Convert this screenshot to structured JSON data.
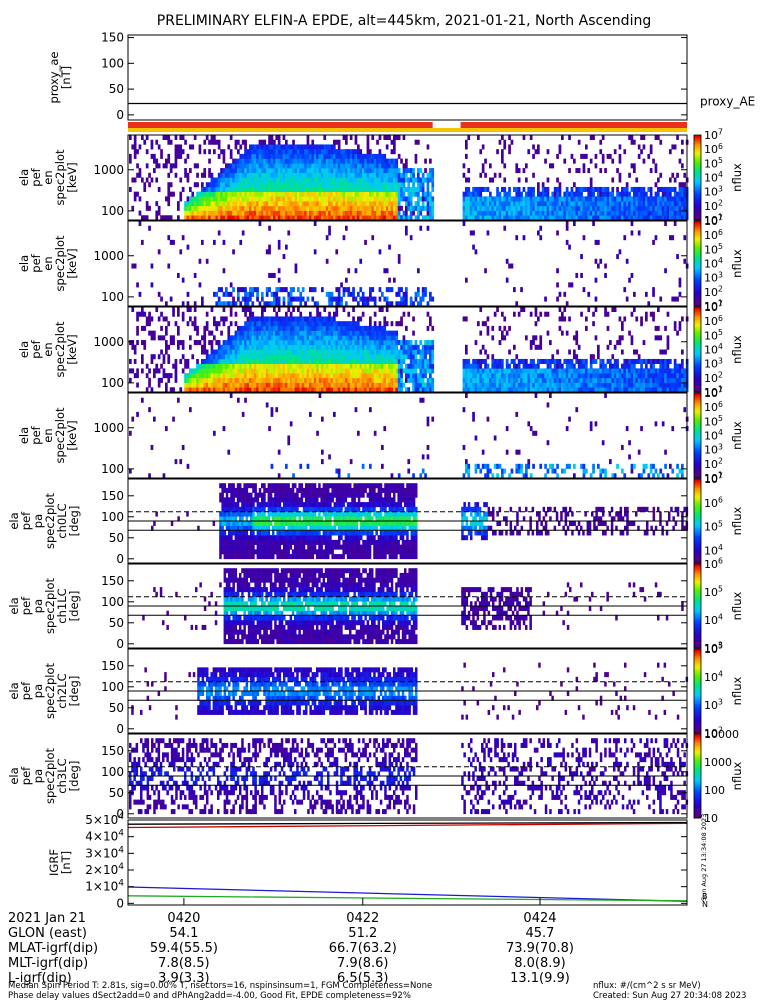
{
  "title": "PRELIMINARY ELFIN-A EPDE, alt=445km, 2021-01-21, North Ascending",
  "colors": {
    "ae_line": "#000000",
    "bar_red": "#e8321e",
    "bar_yellow": "#f5c400",
    "igrf_total": "#cc0000",
    "igrf_x": "#1a1ad6",
    "igrf_y": "#22aa22",
    "igrf_z": "#000000"
  },
  "chart_data": [
    {
      "type": "line",
      "name": "proxy_ae",
      "ylabel": [
        "proxy_ae",
        "[nT]"
      ],
      "ylim": [
        -10,
        155
      ],
      "yticks": [
        0,
        50,
        100,
        150
      ],
      "series": [
        {
          "name": "proxy_AE",
          "x": [
            0,
            1
          ],
          "values": [
            22,
            22
          ]
        }
      ],
      "legend": "proxy_AE"
    },
    {
      "type": "bar-strip",
      "name": "status-bar",
      "gap_fraction": [
        0.545,
        0.595
      ],
      "colors": [
        "red",
        "yellow"
      ]
    },
    {
      "type": "heatmap",
      "name": "energy-spectrogram-1",
      "ylabel": [
        "ela",
        "pef",
        "en",
        "spec2plot",
        "[keV]"
      ],
      "ylog": true,
      "ylim": [
        60,
        7000
      ],
      "yticks": [
        100,
        1000
      ],
      "colorbar": {
        "label": "nflux",
        "scale": "log",
        "range": [
          10,
          10000000
        ],
        "ticks": [
          "10^1",
          "10^2",
          "10^3",
          "10^4",
          "10^5",
          "10^6",
          "10^7"
        ]
      },
      "pattern": "energy-strong"
    },
    {
      "type": "heatmap",
      "name": "energy-spectrogram-2",
      "ylabel": [
        "ela",
        "pef",
        "en",
        "spec2plot",
        "[keV]"
      ],
      "ylog": true,
      "ylim": [
        60,
        7000
      ],
      "yticks": [
        100,
        1000
      ],
      "colorbar": {
        "label": "nflux",
        "scale": "log",
        "range": [
          10,
          10000000
        ],
        "ticks": [
          "10^1",
          "10^2",
          "10^3",
          "10^4",
          "10^5",
          "10^6",
          "10^7"
        ]
      },
      "pattern": "energy-weak"
    },
    {
      "type": "heatmap",
      "name": "energy-spectrogram-3",
      "ylabel": [
        "ela",
        "pef",
        "en",
        "spec2plot",
        "[keV]"
      ],
      "ylog": true,
      "ylim": [
        60,
        7000
      ],
      "yticks": [
        100,
        1000
      ],
      "colorbar": {
        "label": "nflux",
        "scale": "log",
        "range": [
          10,
          10000000
        ],
        "ticks": [
          "10^1",
          "10^2",
          "10^3",
          "10^4",
          "10^5",
          "10^6",
          "10^7"
        ]
      },
      "pattern": "energy-strong"
    },
    {
      "type": "heatmap",
      "name": "energy-spectrogram-4",
      "ylabel": [
        "ela",
        "pef",
        "en",
        "spec2plot",
        "[keV]"
      ],
      "ylog": true,
      "ylim": [
        60,
        7000
      ],
      "yticks": [
        100,
        1000
      ],
      "colorbar": {
        "label": "nflux",
        "scale": "log",
        "range": [
          10,
          10000000
        ],
        "ticks": [
          "10^1",
          "10^2",
          "10^3",
          "10^4",
          "10^5",
          "10^6",
          "10^7"
        ]
      },
      "pattern": "energy-sparse"
    },
    {
      "type": "heatmap",
      "name": "pitch-angle-ch0",
      "ylabel": [
        "ela",
        "pef",
        "pa",
        "spec2plot",
        "ch0LC",
        "[deg]"
      ],
      "ylim": [
        -10,
        190
      ],
      "yticks": [
        0,
        50,
        100,
        150
      ],
      "hlines": [
        {
          "y": 90,
          "style": "solid"
        },
        {
          "y": 68,
          "style": "solid"
        },
        {
          "y": 112,
          "style": "dashed"
        }
      ],
      "colorbar": {
        "label": "nflux",
        "scale": "log",
        "range": [
          3000,
          10000000
        ],
        "ticks": [
          "10^4",
          "10^5",
          "10^6",
          "10^7"
        ]
      },
      "pattern": "pa-0"
    },
    {
      "type": "heatmap",
      "name": "pitch-angle-ch1",
      "ylabel": [
        "ela",
        "pef",
        "pa",
        "spec2plot",
        "ch1LC",
        "[deg]"
      ],
      "ylim": [
        -10,
        190
      ],
      "yticks": [
        0,
        50,
        100,
        150
      ],
      "hlines": [
        {
          "y": 90,
          "style": "solid"
        },
        {
          "y": 68,
          "style": "solid"
        },
        {
          "y": 112,
          "style": "dashed"
        }
      ],
      "colorbar": {
        "label": "nflux",
        "scale": "log",
        "range": [
          1000,
          1000000
        ],
        "ticks": [
          "10^3",
          "10^4",
          "10^5",
          "10^6"
        ]
      },
      "pattern": "pa-1"
    },
    {
      "type": "heatmap",
      "name": "pitch-angle-ch2",
      "ylabel": [
        "ela",
        "pef",
        "pa",
        "spec2plot",
        "ch2LC",
        "[deg]"
      ],
      "ylim": [
        -10,
        190
      ],
      "yticks": [
        0,
        50,
        100,
        150
      ],
      "hlines": [
        {
          "y": 90,
          "style": "solid"
        },
        {
          "y": 68,
          "style": "solid"
        },
        {
          "y": 112,
          "style": "dashed"
        }
      ],
      "colorbar": {
        "label": "nflux",
        "scale": "log",
        "range": [
          100,
          100000
        ],
        "ticks": [
          "10^2",
          "10^3",
          "10^4",
          "10^5"
        ]
      },
      "pattern": "pa-2"
    },
    {
      "type": "heatmap",
      "name": "pitch-angle-ch3",
      "ylabel": [
        "ela",
        "pef",
        "pa",
        "spec2plot",
        "ch3LC",
        "[deg]"
      ],
      "ylim": [
        -10,
        190
      ],
      "yticks": [
        0,
        50,
        100,
        150
      ],
      "hlines": [
        {
          "y": 90,
          "style": "solid"
        },
        {
          "y": 68,
          "style": "solid"
        },
        {
          "y": 112,
          "style": "dashed"
        }
      ],
      "colorbar": {
        "label": "nflux",
        "scale": "log",
        "range": [
          10,
          10000
        ],
        "ticks": [
          "10",
          "100",
          "1000",
          "10000"
        ]
      },
      "pattern": "pa-3"
    },
    {
      "type": "line",
      "name": "igrf",
      "ylabel": [
        "IGRF",
        "[nT]"
      ],
      "ylim": [
        -1000,
        50000
      ],
      "yticks": [
        0,
        10000,
        20000,
        30000,
        40000,
        50000
      ],
      "ytick_labels": [
        "0",
        "1×10^4",
        "2×10^4",
        "3×10^4",
        "4×10^4",
        "5×10^4"
      ],
      "series": [
        {
          "color": "igrf_total",
          "x": [
            0,
            1
          ],
          "values": [
            45500,
            48000
          ]
        },
        {
          "color": "igrf_x",
          "x": [
            0,
            1
          ],
          "values": [
            9800,
            1200
          ]
        },
        {
          "color": "igrf_y",
          "x": [
            0,
            1
          ],
          "values": [
            4500,
            1500
          ]
        },
        {
          "color": "igrf_z",
          "x": [
            0,
            1
          ],
          "values": [
            47500,
            48500
          ]
        }
      ],
      "right_labels": [
        "Sun Aug 27 13:34:08 2023",
        "B",
        "N"
      ]
    }
  ],
  "x_axis": {
    "tick_fractions": [
      0.1,
      0.42,
      0.737
    ],
    "rows": [
      {
        "label": "2021 Jan 21",
        "values": [
          "0420",
          "0422",
          "0424"
        ]
      },
      {
        "label": "GLON (east)",
        "values": [
          "54.1",
          "51.2",
          "45.7"
        ]
      },
      {
        "label": "MLAT-igrf(dip)",
        "values": [
          "59.4(55.5)",
          "66.7(63.2)",
          "73.9(70.8)"
        ]
      },
      {
        "label": "MLT-igrf(dip)",
        "values": [
          "7.8(8.5)",
          "7.9(8.6)",
          "8.0(8.9)"
        ]
      },
      {
        "label": "L-igrf(dip)",
        "values": [
          "3.9(3.3)",
          "6.5(5.3)",
          "13.1(9.9)"
        ]
      }
    ]
  },
  "footer": {
    "line1_left": "Median Spin Period T: 2.81s, sig=0.00% T, nsectors=16, nspinsinsum=1, FGM Completeness=None",
    "line2_left": "Phase delay values dSect2add=0 and dPhAng2add=-4.00, Good Fit, EPDE completeness=92%",
    "line1_right": "nflux: #/(cm^2 s sr MeV)",
    "line2_right": "Created: Sun Aug 27 20:34:08 2023"
  }
}
